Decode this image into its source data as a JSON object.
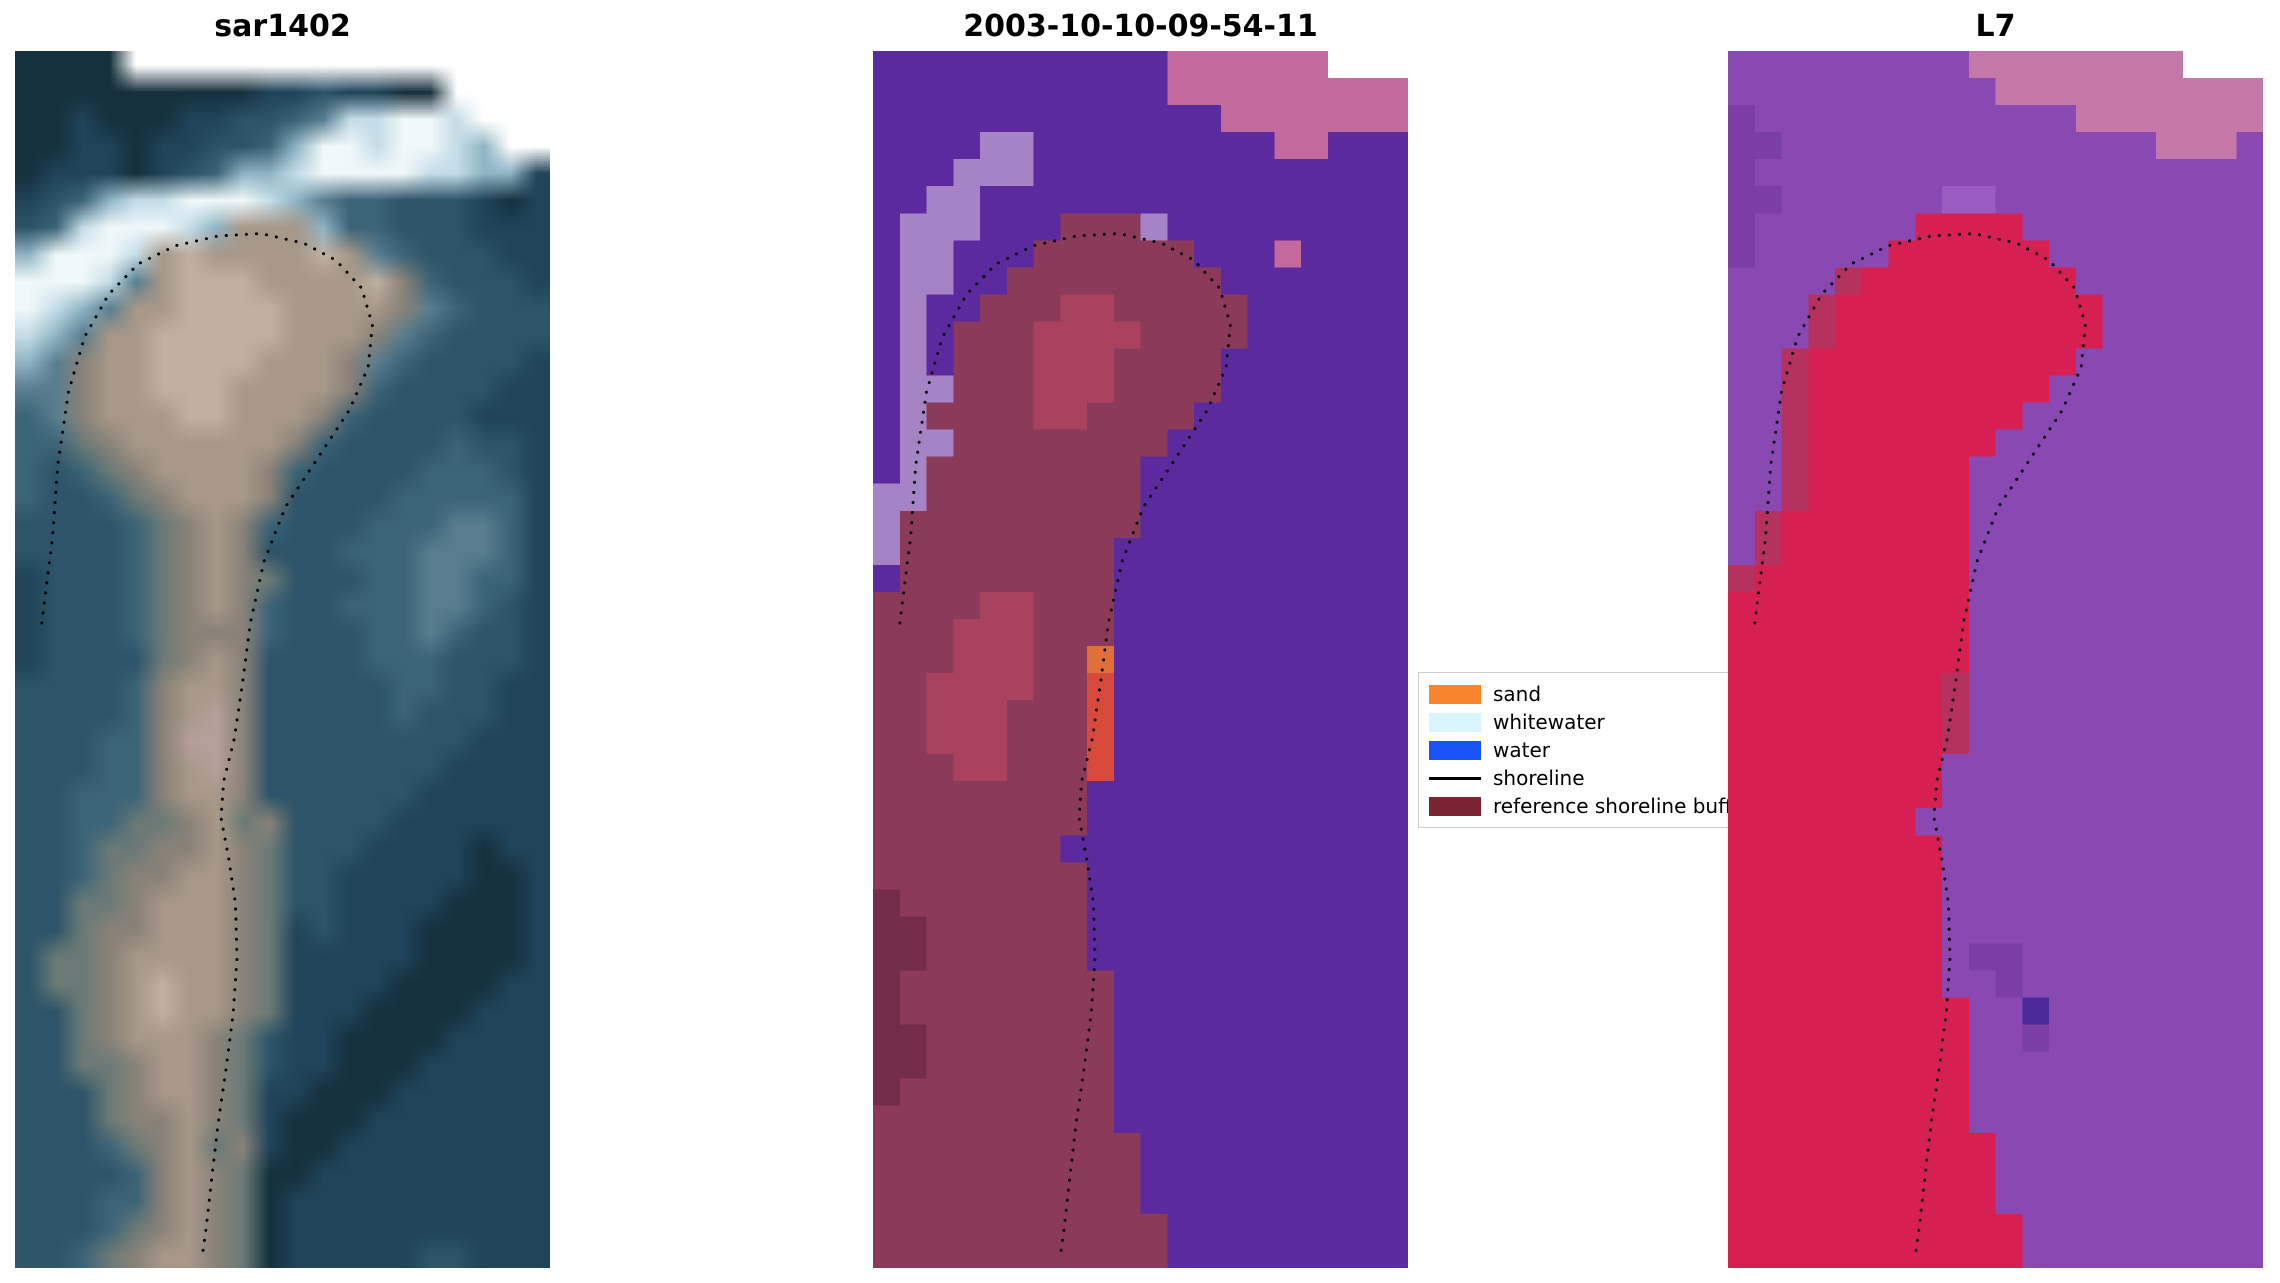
{
  "chart_data": {
    "type": "heatmap",
    "description": "Three-panel satellite shoreline-detection figure: SAR image, classified image, and Landsat 7 image, each overlaid with a dotted detected shoreline.",
    "panels": [
      {
        "id": "sar1402",
        "title": "sar1402",
        "kind": "sar-image",
        "render": "smooth",
        "grid_cols": 20,
        "grid_rows": 45,
        "palette": {
          "0": "#0e1f2b",
          "1": "#16303d",
          "2": "#204459",
          "3": "#2d5468",
          "4": "#3c6477",
          "5": "#587e8f",
          "6": "#8fb4c4",
          "7": "#c5dde8",
          "8": "#eff8fa",
          "a": "#6b7a77",
          "b": "#8a8278",
          "c": "#a89888",
          "d": "#c0b0a2",
          "e": "#d8cabd",
          "f": "#b79f9b"
        },
        "grid": [
          "1111................",
          "1111111112232211....",
          "11211122334577887...",
          "112212233468878876..",
          "12221234667888877662",
          "23467788876544333212",
          "34788876ccc644333222",
          "68887cdccccdc5433322",
          "88875cdddccccdb43332",
          "8765ccddddccccb54333",
          "765ccdddddcccb543333",
          "65bccddddcccb5433332",
          "55bccdddccccb4333322",
          "45bcccddcccb43333222",
          "44abccccccb433334332",
          "434abccccb4333344432",
          "4334abcccb3333444442",
          "33334abcb43334445542",
          "33334abcb33344455542",
          "23334abcba3334455442",
          "23334abcb43344455432",
          "23334abbb43334454332",
          "23333abcb33334443332",
          "33334bccb33333443322",
          "33334bcfb33333433322",
          "33344bffb33333333222",
          "33344bcfb33333332222",
          "33444bccb33333322222",
          "3344aabcab3333222222",
          "334aabbcba3332222122",
          "334abbccba3322222112",
          "33aabcccba3322221112",
          "33abbcccba2322211112",
          "3aabccccba2222211112",
          "3aabcdccba2222111122",
          "33abcdccba2221111222",
          "33abcccba32211112222",
          "33aabccba32211122222",
          "333abccba22111222222",
          "333abbcba21112222222",
          "3334abcab21122222222",
          "33334bcba11222222222",
          "33344bcba12222222222",
          "3334abcba12222222222",
          "334abccba12222233222"
        ]
      },
      {
        "id": "classified",
        "title": "2003-10-10-09-54-11",
        "kind": "classified-image",
        "render": "pixelated",
        "grid_cols": 20,
        "grid_rows": 45,
        "palette": {
          "P": "#5b2a9e",
          "p": "#c4699c",
          "l": "#a583c4",
          "m": "#8c3a59",
          "M": "#742c4b",
          "r": "#a8425f",
          "o": "#e07038",
          "R": "#d84a3c",
          "v": "#6d3a7a"
        },
        "grid": [
          "PPPPPPPPPPPpppppp...",
          "PPPPPPPPPPPppppppppp",
          "PPPPPPPPPPPPPppppppp",
          "PPPPllPPPPPPPPPppPPP",
          "PPPlllPPPPPPPPPPPPPP",
          "PPllPPPPPPPPPPPPPPPP",
          "PlllPPPmmmlPPPPPPPPP",
          "PllPPPmmmmmmPPPpPPPP",
          "PllPPmmmmmmmmPPPPPPP",
          "PlPPmmmrrmmmmmPPPPPP",
          "PlPmmmrrrrmmmmPPPPPP",
          "PlPmmmrrrmmmmPPPPPPP",
          "PllmmmrrrmmmmPPPPPPP",
          "PlmmmmrrmmmmPPPPPPPP",
          "PllmmmmmmmmPPPPPPPPP",
          "PlmmmmmmmmPPPPPPPPPP",
          "llmmmmmmmmPPPPPPPPPP",
          "lmmmmmmmmmPPPPPPPPPP",
          "lmmmmmmmmPPPPPPPPPPP",
          "PmmmmmmmmPPPPPPPPPPP",
          "mmmmrrmmmPPPPPPPPPPP",
          "mmmrrrmmmPPPPPPPPPPP",
          "mmmrrrmmoPPPPPPPPPPP",
          "mmrrrrmmRPPPPPPPPPPP",
          "mmrrrmmmRPPPPPPPPPPP",
          "mmrrrmmmRPPPPPPPPPPP",
          "mmmrrmmmRPPPPPPPPPPP",
          "mmmmmmmmPPPPPPPPPPPP",
          "mmmmmmmmPPPPPPPPPPPP",
          "mmmmmmmPPPPPPPPPPPPP",
          "mmmmmmmmPPPPPPPPPPPP",
          "MmmmmmmmPPPPPPPPPPPP",
          "MMmmmmmmPPPPPPPPPPPP",
          "MMmmmmmmPPPPPPPPPPPP",
          "MmmmmmmmmPPPPPPPPPPP",
          "MmmmmmmmmPPPPPPPPPPP",
          "MMmmmmmmmPPPPPPPPPPP",
          "MMmmmmmmmPPPPPPPPPPP",
          "MmmmmmmmmPPPPPPPPPPP",
          "mmmmmmmmmPPPPPPPPPPP",
          "mmmmmmmmmmPPPPPPPPPP",
          "mmmmmmmmmmPPPPPPPPPP",
          "mmmmmmmmmmPPPPPPPPPP",
          "mmmmmmmmmmmPPPPPPPPP",
          "mmmmmmmmmmmPPPPPPPPP"
        ]
      },
      {
        "id": "l7",
        "title": "L7",
        "kind": "landsat7-image",
        "render": "pixelated",
        "grid_cols": 20,
        "grid_rows": 45,
        "palette": {
          "P": "#8a49b2",
          "Q": "#7b3da6",
          "q": "#9a5cc0",
          "p": "#c478a8",
          "r": "#d62052",
          "R": "#b5325e",
          "N": "#4b2a9a"
        },
        "grid": [
          "PPPPPPPPPpppppppp...",
          "PPPPPPPPPPpppppppppp",
          "QPPPPPPPPPPPPppppppp",
          "QQPPPPPPPPPPPPPPpppP",
          "QPPPPPPPPPPPPPPPPPPP",
          "QQPPPPPPqqPPPPPPPPPP",
          "QPPPPPPrrrrPPPPPPPPP",
          "QPPPPPrrrrrrPPPPPPPP",
          "PPPPRrrrrrrrrPPPPPPP",
          "PPPRrrrrrrrrrrPPPPPP",
          "PPPRrrrrrrrrrrPPPPPP",
          "PPRrrrrrrrrrrPPPPPPP",
          "PPRrrrrrrrrrPPPPPPPP",
          "PPRrrrrrrrrPPPPPPPPP",
          "PPRrrrrrrrPPPPPPPPPP",
          "PPRrrrrrrPPPPPPPPPPP",
          "PPRrrrrrrPPPPPPPPPPP",
          "PRrrrrrrrPPPPPPPPPPP",
          "PRrrrrrrrPPPPPPPPPPP",
          "RrrrrrrrrPPPPPPPPPPP",
          "rrrrrrrrrPPPPPPPPPPP",
          "rrrrrrrrrPPPPPPPPPPP",
          "rrrrrrrrrPPPPPPPPPPP",
          "rrrrrrrrRPPPPPPPPPPP",
          "rrrrrrrrRPPPPPPPPPPP",
          "rrrrrrrrRPPPPPPPPPPP",
          "rrrrrrrrPPPPPPPPPPPP",
          "rrrrrrrrPPPPPPPPPPPP",
          "rrrrrrrPPPPPPPPPPPPP",
          "rrrrrrrrPPPPPPPPPPPP",
          "rrrrrrrrPPPPPPPPPPPP",
          "rrrrrrrrPPPPPPPPPPPP",
          "rrrrrrrrPPPPPPPPPPPP",
          "rrrrrrrrPQQPPPPPPPPP",
          "rrrrrrrrPPQPPPPPPPPP",
          "rrrrrrrrrPPNPPPPPPPP",
          "rrrrrrrrrPPQPPPPPPPP",
          "rrrrrrrrrPPPPPPPPPPP",
          "rrrrrrrrrPPPPPPPPPPP",
          "rrrrrrrrrPPPPPPPPPPP",
          "rrrrrrrrrrPPPPPPPPPP",
          "rrrrrrrrrrPPPPPPPPPP",
          "rrrrrrrrrrPPPPPPPPPP",
          "rrrrrrrrrrrPPPPPPPPP",
          "rrrrrrrrrrrPPPPPPPPP"
        ]
      }
    ],
    "shoreline": {
      "style": "dotted",
      "color": "#000000",
      "points": [
        [
          0.05,
          0.47
        ],
        [
          0.07,
          0.4
        ],
        [
          0.08,
          0.34
        ],
        [
          0.1,
          0.28
        ],
        [
          0.13,
          0.235
        ],
        [
          0.175,
          0.2
        ],
        [
          0.23,
          0.175
        ],
        [
          0.3,
          0.16
        ],
        [
          0.38,
          0.152
        ],
        [
          0.46,
          0.15
        ],
        [
          0.54,
          0.158
        ],
        [
          0.6,
          0.172
        ],
        [
          0.648,
          0.195
        ],
        [
          0.668,
          0.225
        ],
        [
          0.66,
          0.26
        ],
        [
          0.625,
          0.295
        ],
        [
          0.565,
          0.335
        ],
        [
          0.505,
          0.375
        ],
        [
          0.465,
          0.42
        ],
        [
          0.44,
          0.47
        ],
        [
          0.425,
          0.52
        ],
        [
          0.41,
          0.565
        ],
        [
          0.39,
          0.6
        ],
        [
          0.385,
          0.63
        ],
        [
          0.4,
          0.665
        ],
        [
          0.412,
          0.7
        ],
        [
          0.415,
          0.745
        ],
        [
          0.408,
          0.79
        ],
        [
          0.395,
          0.835
        ],
        [
          0.38,
          0.88
        ],
        [
          0.368,
          0.925
        ],
        [
          0.358,
          0.965
        ],
        [
          0.35,
          0.99
        ]
      ]
    },
    "legend": {
      "entries": [
        {
          "label": "sand",
          "kind": "patch",
          "swatch": "#f8842c"
        },
        {
          "label": "whitewater",
          "kind": "patch",
          "swatch": "#d9f4fa"
        },
        {
          "label": "water",
          "kind": "patch",
          "swatch": "#1a53f5"
        },
        {
          "label": "shoreline",
          "kind": "line",
          "swatch": "#000000"
        },
        {
          "label": "reference shoreline buffer",
          "kind": "patch",
          "swatch": "#7a2433"
        }
      ]
    }
  }
}
